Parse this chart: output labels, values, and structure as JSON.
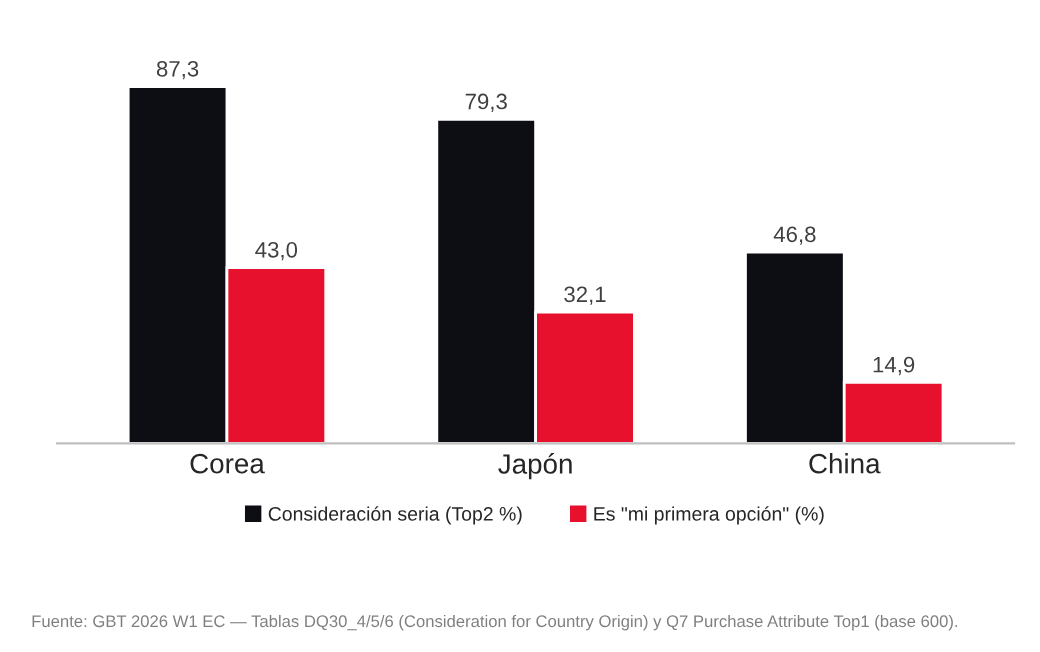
{
  "chart_data": {
    "type": "bar",
    "categories": [
      "Corea",
      "Japón",
      "China"
    ],
    "series": [
      {
        "name": "Consideración seria (Top2 %)",
        "color": "#0d0d14",
        "values": [
          87.3,
          79.3,
          46.8
        ],
        "value_labels": [
          "87,3",
          "79,3",
          "46,8"
        ]
      },
      {
        "name": "Es \"mi primera opción\" (%)",
        "color": "#e8112d",
        "values": [
          43.0,
          32.1,
          14.9
        ],
        "value_labels": [
          "43,0",
          "32,1",
          "14,9"
        ]
      }
    ],
    "legend": "bottom",
    "grid": false,
    "tick_labels": "x",
    "annotations": [
      "Fuente: GBT 2026 W1 EC — Tablas DQ30_4/5/6 (Consideration for Country Origin) y Q7 Purchase Attribute Top1 (base 600)."
    ]
  }
}
